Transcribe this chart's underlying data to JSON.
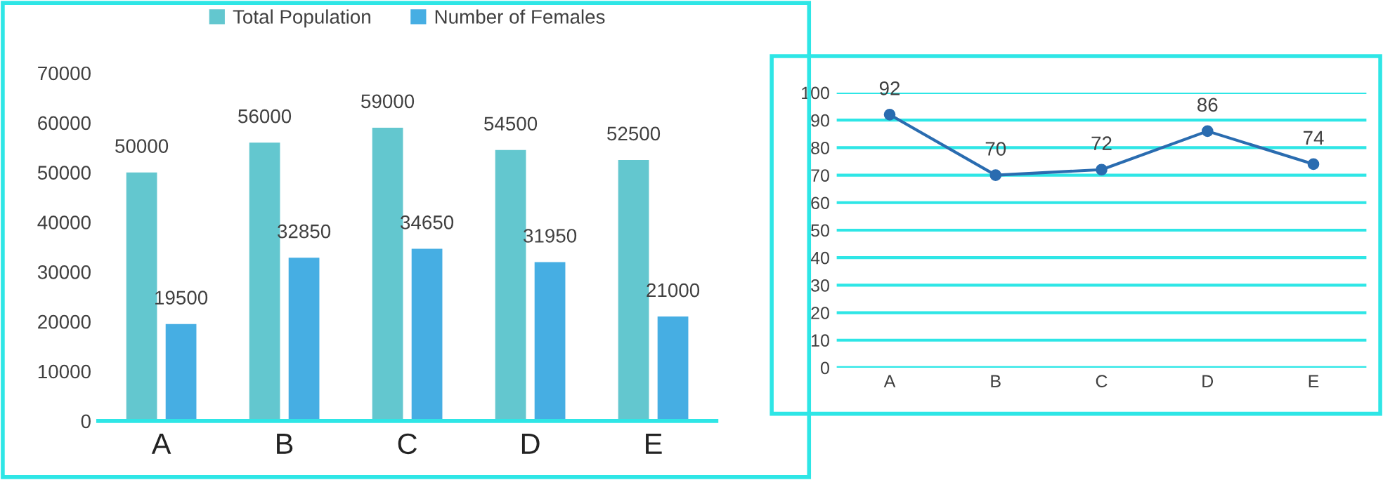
{
  "chart_data": [
    {
      "type": "bar",
      "categories": [
        "A",
        "B",
        "C",
        "D",
        "E"
      ],
      "series": [
        {
          "name": "Total Population",
          "color": "#63c7cf",
          "values": [
            50000,
            56000,
            59000,
            54500,
            52500
          ]
        },
        {
          "name": "Number of Females",
          "color": "#46aee3",
          "values": [
            19500,
            32850,
            34650,
            31950,
            21000
          ]
        }
      ],
      "ylim": [
        0,
        70000
      ],
      "yticks": [
        0,
        10000,
        20000,
        30000,
        40000,
        50000,
        60000,
        70000
      ],
      "grid": false,
      "legend": "top",
      "data_labels": true
    },
    {
      "type": "line",
      "categories": [
        "A",
        "B",
        "C",
        "D",
        "E"
      ],
      "series": [
        {
          "color": "#2a6cb0",
          "values": [
            92,
            70,
            72,
            86,
            74
          ]
        }
      ],
      "ylim": [
        0,
        100
      ],
      "yticks": [
        0,
        10,
        20,
        30,
        40,
        50,
        60,
        70,
        80,
        90,
        100
      ],
      "grid": "y",
      "marker": "circle",
      "line_style": "solid",
      "data_labels": true
    }
  ]
}
